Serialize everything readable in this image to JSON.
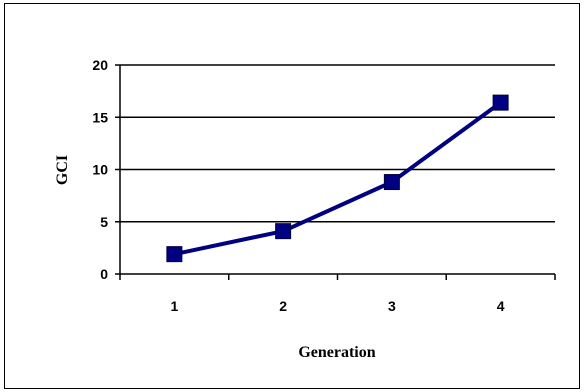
{
  "chart_data": {
    "type": "line",
    "xlabel": "Generation",
    "ylabel": "GCI",
    "categories": [
      "1",
      "2",
      "3",
      "4"
    ],
    "series": [
      {
        "values": [
          1.9,
          4.1,
          8.8,
          16.4
        ],
        "color": "#000080"
      }
    ],
    "ylim": [
      0,
      20
    ],
    "yticks": [
      0,
      5,
      10,
      15,
      20
    ],
    "grid": true,
    "marker": "square",
    "legend": "none"
  }
}
